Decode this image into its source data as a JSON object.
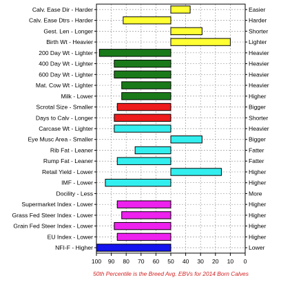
{
  "chart_data": {
    "type": "bar",
    "orientation": "horizontal",
    "xlim": [
      100,
      0
    ],
    "x_ticks": [
      100,
      90,
      80,
      70,
      60,
      50,
      40,
      30,
      20,
      10,
      0
    ],
    "baseline": 50,
    "grid": true,
    "footnote": "50th Percentile is the Breed Avg. EBVs for 2014 Born Calves",
    "rows": [
      {
        "left": "Calv. Ease Dir - Harder",
        "right": "Easier",
        "value": 37,
        "color": "#ffff33"
      },
      {
        "left": "Calv. Ease Dtrs - Harder",
        "right": "Harder",
        "value": 82,
        "color": "#ffff33"
      },
      {
        "left": "Gest. Len - Longer",
        "right": "Shorter",
        "value": 29,
        "color": "#ffff33"
      },
      {
        "left": "Birth Wt - Heavier",
        "right": "Lighter",
        "value": 10,
        "color": "#ffff33"
      },
      {
        "left": "200 Day Wt - Lighter",
        "right": "Heavier",
        "value": 98,
        "color": "#1a7a1a"
      },
      {
        "left": "400 Day Wt - Lighter",
        "right": "Heavier",
        "value": 88,
        "color": "#1a7a1a"
      },
      {
        "left": "600 Day Wt - Lighter",
        "right": "Heavier",
        "value": 88,
        "color": "#1a7a1a"
      },
      {
        "left": "Mat. Cow Wt - Lighter",
        "right": "Heavier",
        "value": 83,
        "color": "#1a7a1a"
      },
      {
        "left": "Milk - Lower",
        "right": "Higher",
        "value": 83,
        "color": "#1a7a1a"
      },
      {
        "left": "Scrotal Size - Smaller",
        "right": "Bigger",
        "value": 86,
        "color": "#ee1c1c"
      },
      {
        "left": "Days to Calv - Longer",
        "right": "Shorter",
        "value": 88,
        "color": "#ee1c1c"
      },
      {
        "left": "Carcase Wt - Lighter",
        "right": "Heavier",
        "value": 88,
        "color": "#33eeee"
      },
      {
        "left": "Eye Musc Area - Smaller",
        "right": "Bigger",
        "value": 29,
        "color": "#33eeee"
      },
      {
        "left": "Rib Fat - Leaner",
        "right": "Fatter",
        "value": 74,
        "color": "#33eeee"
      },
      {
        "left": "Rump Fat - Leaner",
        "right": "Fatter",
        "value": 86,
        "color": "#33eeee"
      },
      {
        "left": "Retail Yield - Lower",
        "right": "Higher",
        "value": 16,
        "color": "#33eeee"
      },
      {
        "left": "IMF - Lower",
        "right": "Higher",
        "value": 94,
        "color": "#33eeee"
      },
      {
        "left": "Docility - Less",
        "right": "More",
        "value": null,
        "color": "#33eeee"
      },
      {
        "left": "Supermarket Index - Lower",
        "right": "Higher",
        "value": 86,
        "color": "#ee22ee"
      },
      {
        "left": "Grass Fed Steer Index - Lower",
        "right": "Higher",
        "value": 83,
        "color": "#ee22ee"
      },
      {
        "left": "Grain Fed Steer Index - Lower",
        "right": "Higher",
        "value": 88,
        "color": "#ee22ee"
      },
      {
        "left": "EU Index - Lower",
        "right": "Higher",
        "value": 86,
        "color": "#ee22ee"
      },
      {
        "left": "NFI-F - Higher",
        "right": "Lower",
        "value": 100,
        "color": "#1414ee"
      }
    ]
  }
}
